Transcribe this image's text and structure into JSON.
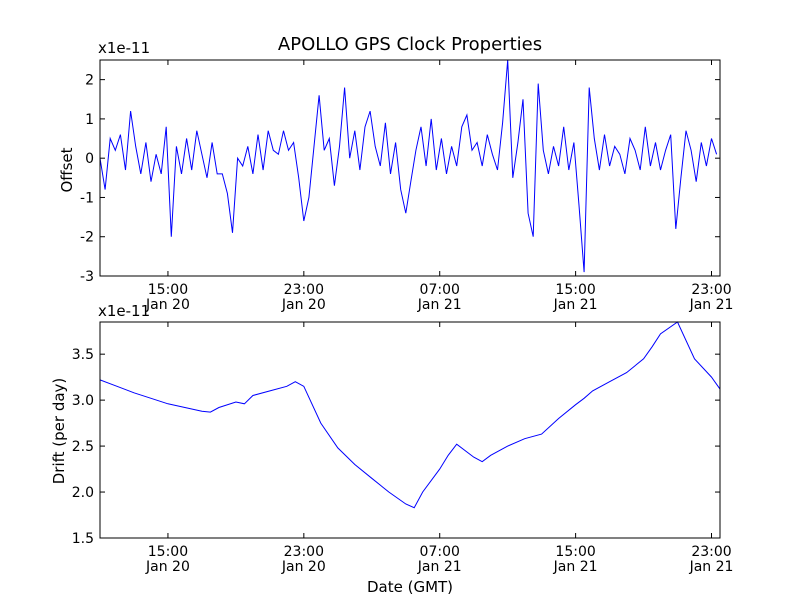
{
  "figure": {
    "title": "APOLLO GPS Clock Properties",
    "line_color": "#0000ff"
  },
  "chart_data": [
    {
      "type": "line",
      "ylabel": "Offset",
      "y_multiplier": "x1e-11",
      "ylim": [
        -3,
        2.5
      ],
      "yticks": [
        "2",
        "1",
        "0",
        "-1",
        "-2",
        "-3"
      ],
      "ytick_values": [
        2,
        1,
        0,
        -1,
        -2,
        -3
      ],
      "x_range_hours": [
        11.0,
        47.5
      ],
      "xticks": [
        {
          "hour": 15,
          "time": "15:00",
          "date": "Jan 20"
        },
        {
          "hour": 23,
          "time": "23:00",
          "date": "Jan 20"
        },
        {
          "hour": 31,
          "time": "07:00",
          "date": "Jan 21"
        },
        {
          "hour": 39,
          "time": "15:00",
          "date": "Jan 21"
        },
        {
          "hour": 47,
          "time": "23:00",
          "date": "Jan 21"
        }
      ],
      "series": [
        {
          "note_values": "offset samples (units of 1e-11)",
          "x": [
            11.0,
            11.3,
            11.6,
            11.9,
            12.2,
            12.5,
            12.8,
            13.1,
            13.4,
            13.7,
            14.0,
            14.3,
            14.6,
            14.9,
            15.2,
            15.5,
            15.8,
            16.1,
            16.4,
            16.7,
            17.0,
            17.3,
            17.6,
            17.9,
            18.2,
            18.5,
            18.8,
            19.1,
            19.4,
            19.7,
            20.0,
            20.3,
            20.6,
            20.9,
            21.2,
            21.5,
            21.8,
            22.1,
            22.4,
            22.7,
            23.0,
            23.3,
            23.6,
            23.9,
            24.2,
            24.5,
            24.8,
            25.1,
            25.4,
            25.7,
            26.0,
            26.3,
            26.6,
            26.9,
            27.2,
            27.5,
            27.8,
            28.1,
            28.4,
            28.7,
            29.0,
            29.3,
            29.6,
            29.9,
            30.2,
            30.5,
            30.8,
            31.1,
            31.4,
            31.7,
            32.0,
            32.3,
            32.6,
            32.9,
            33.2,
            33.5,
            33.8,
            34.1,
            34.4,
            34.7,
            35.0,
            35.3,
            35.6,
            35.9,
            36.2,
            36.5,
            36.8,
            37.1,
            37.4,
            37.7,
            38.0,
            38.3,
            38.6,
            38.9,
            39.2,
            39.5,
            39.8,
            40.1,
            40.4,
            40.7,
            41.0,
            41.3,
            41.6,
            41.9,
            42.2,
            42.5,
            42.8,
            43.1,
            43.4,
            43.7,
            44.0,
            44.3,
            44.6,
            44.9,
            45.2,
            45.5,
            45.8,
            46.1,
            46.4,
            46.7,
            47.0,
            47.3
          ],
          "values": [
            0.0,
            -0.8,
            0.5,
            0.2,
            0.6,
            -0.3,
            1.2,
            0.3,
            -0.4,
            0.4,
            -0.6,
            0.1,
            -0.4,
            0.8,
            -2.0,
            0.3,
            -0.4,
            0.5,
            -0.3,
            0.7,
            0.1,
            -0.5,
            0.4,
            -0.4,
            -0.4,
            -0.9,
            -1.9,
            0.0,
            -0.2,
            0.3,
            -0.4,
            0.6,
            -0.3,
            0.7,
            0.2,
            0.1,
            0.7,
            0.2,
            0.4,
            -0.5,
            -1.6,
            -1.0,
            0.3,
            1.6,
            0.2,
            0.5,
            -0.7,
            0.3,
            1.8,
            0.0,
            0.7,
            -0.3,
            0.8,
            1.2,
            0.3,
            -0.2,
            0.9,
            -0.4,
            0.4,
            -0.8,
            -1.4,
            -0.6,
            0.2,
            0.8,
            -0.2,
            1.0,
            -0.3,
            0.5,
            -0.4,
            0.3,
            -0.2,
            0.8,
            1.1,
            0.2,
            0.4,
            -0.2,
            0.6,
            0.1,
            -0.3,
            0.9,
            2.5,
            -0.5,
            0.4,
            1.5,
            -1.4,
            -2.0,
            1.9,
            0.2,
            -0.4,
            0.3,
            -0.2,
            0.8,
            -0.3,
            0.4,
            -1.2,
            -2.9,
            1.8,
            0.5,
            -0.3,
            0.6,
            -0.2,
            0.3,
            0.1,
            -0.4,
            0.5,
            0.2,
            -0.3,
            0.8,
            -0.2,
            0.4,
            -0.3,
            0.2,
            0.6,
            -1.8,
            -0.5,
            0.7,
            0.2,
            -0.6,
            0.4,
            -0.2,
            0.5,
            0.1
          ]
        }
      ]
    },
    {
      "type": "line",
      "xlabel": "Date (GMT)",
      "ylabel": "Drift (per day)",
      "y_multiplier": "x1e-11",
      "ylim": [
        1.5,
        3.85
      ],
      "yticks": [
        "3.5",
        "3.0",
        "2.5",
        "2.0",
        "1.5"
      ],
      "ytick_values": [
        3.5,
        3.0,
        2.5,
        2.0,
        1.5
      ],
      "x_range_hours": [
        11.0,
        47.5
      ],
      "xticks": [
        {
          "hour": 15,
          "time": "15:00",
          "date": "Jan 20"
        },
        {
          "hour": 23,
          "time": "23:00",
          "date": "Jan 20"
        },
        {
          "hour": 31,
          "time": "07:00",
          "date": "Jan 21"
        },
        {
          "hour": 39,
          "time": "15:00",
          "date": "Jan 21"
        },
        {
          "hour": 47,
          "time": "23:00",
          "date": "Jan 21"
        }
      ],
      "series": [
        {
          "x": [
            11.0,
            12.0,
            13.0,
            14.0,
            15.0,
            16.0,
            17.0,
            17.5,
            18.0,
            19.0,
            19.5,
            20.0,
            21.0,
            22.0,
            22.5,
            23.0,
            24.0,
            25.0,
            26.0,
            27.0,
            28.0,
            29.0,
            29.5,
            30.0,
            31.0,
            31.5,
            32.0,
            33.0,
            33.5,
            34.0,
            35.0,
            36.0,
            37.0,
            38.0,
            39.0,
            39.5,
            40.0,
            41.0,
            42.0,
            43.0,
            43.5,
            44.0,
            45.0,
            46.0,
            47.0,
            47.5
          ],
          "values": [
            3.22,
            3.15,
            3.08,
            3.02,
            2.96,
            2.92,
            2.88,
            2.87,
            2.92,
            2.98,
            2.96,
            3.05,
            3.1,
            3.15,
            3.2,
            3.15,
            2.75,
            2.48,
            2.3,
            2.15,
            2.0,
            1.87,
            1.83,
            2.0,
            2.25,
            2.4,
            2.52,
            2.38,
            2.33,
            2.4,
            2.5,
            2.58,
            2.63,
            2.8,
            2.95,
            3.02,
            3.1,
            3.2,
            3.3,
            3.45,
            3.58,
            3.72,
            3.85,
            3.45,
            3.25,
            3.12
          ]
        }
      ]
    }
  ]
}
